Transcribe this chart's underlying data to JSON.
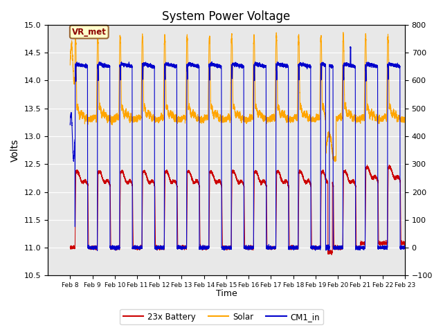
{
  "title": "System Power Voltage",
  "xlabel": "Time",
  "ylabel": "Volts",
  "xlim": [
    7,
    23
  ],
  "ylim_left": [
    10.5,
    15.0
  ],
  "ylim_right": [
    -100,
    800
  ],
  "xtick_positions": [
    8,
    9,
    10,
    11,
    12,
    13,
    14,
    15,
    16,
    17,
    18,
    19,
    20,
    21,
    22,
    23
  ],
  "xtick_labels": [
    "Feb 8",
    "Feb 9",
    "Feb 10",
    "Feb 11",
    "Feb 12",
    "Feb 13",
    "Feb 14",
    "Feb 15",
    "Feb 16",
    "Feb 17",
    "Feb 18",
    "Feb 19",
    "Feb 20",
    "Feb 21",
    "Feb 22",
    "Feb 23"
  ],
  "yticks_left": [
    10.5,
    11.0,
    11.5,
    12.0,
    12.5,
    13.0,
    13.5,
    14.0,
    14.5,
    15.0
  ],
  "yticks_right": [
    -100,
    0,
    100,
    200,
    300,
    400,
    500,
    600,
    700,
    800
  ],
  "battery_color": "#cc0000",
  "solar_color": "#ffa500",
  "cm1_color": "#0000cc",
  "background_color": "#e8e8e8",
  "vr_met_label": "VR_met",
  "legend_labels": [
    "23x Battery",
    "Solar",
    "CM1_in"
  ],
  "title_fontsize": 12
}
